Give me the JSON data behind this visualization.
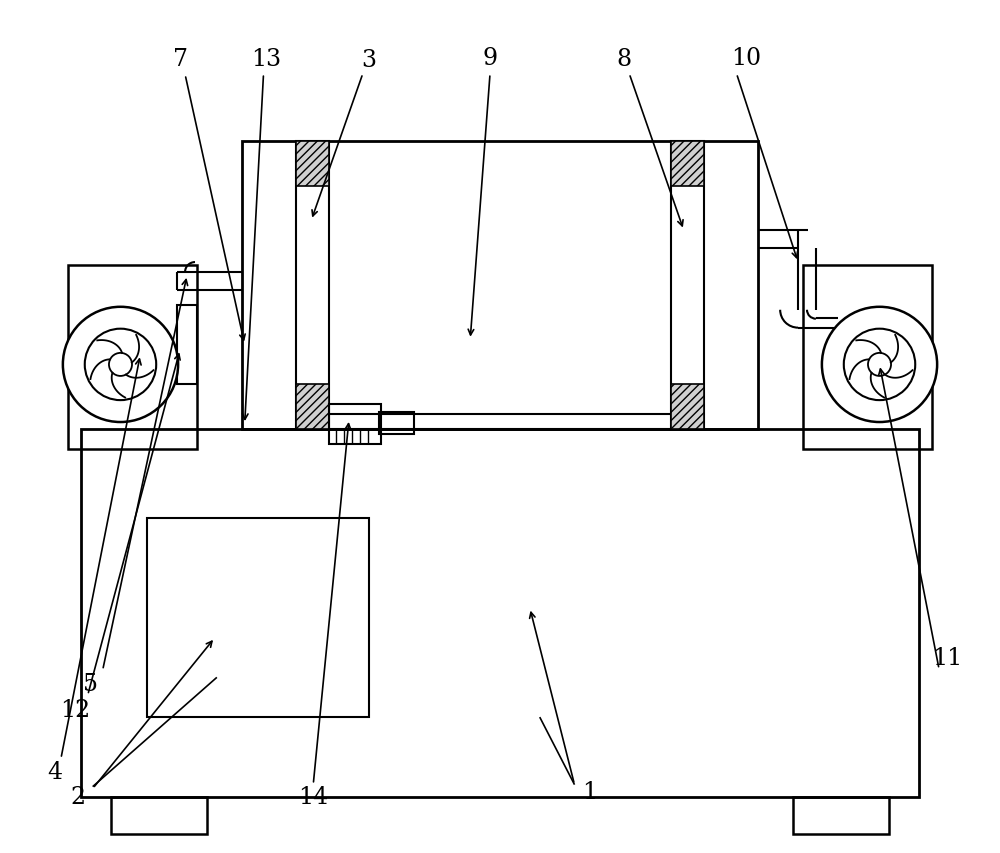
{
  "bg": "#ffffff",
  "lc": "#000000",
  "lw": 1.5,
  "fw": 10.0,
  "fh": 8.54
}
